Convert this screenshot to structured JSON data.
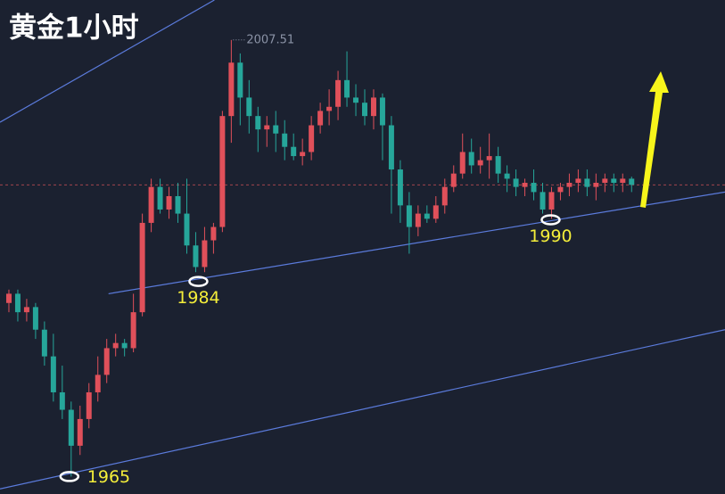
{
  "chart_data": {
    "type": "candlestick",
    "title": "黄金1小时",
    "up_color": "#e0505a",
    "down_color": "#26a69a",
    "xlim": [
      -1,
      80.5
    ],
    "ylim": [
      1963.3,
      2011.4
    ],
    "open": [
      1981.9,
      1982.8,
      1981.0,
      1981.5,
      1979.3,
      1976.7,
      1973.2,
      1971.5,
      1968.0,
      1970.6,
      1973.2,
      1974.9,
      1977.5,
      1978.0,
      1977.5,
      1981.0,
      1989.7,
      1993.2,
      1991.0,
      1992.3,
      1990.6,
      1987.5,
      1985.4,
      1988.0,
      1989.3,
      2000.1,
      2005.3,
      2001.9,
      2000.1,
      1998.8,
      1999.2,
      1998.4,
      1997.1,
      1996.2,
      1996.6,
      1999.2,
      2000.6,
      2001.0,
      2003.6,
      2001.9,
      2001.4,
      2000.1,
      2001.9,
      1999.2,
      1994.9,
      1991.4,
      1989.3,
      1990.6,
      1990.1,
      1991.4,
      1993.2,
      1994.5,
      1996.6,
      1995.3,
      1995.8,
      1996.2,
      1994.5,
      1994.0,
      1993.2,
      1993.6,
      1992.7,
      1991.0,
      1992.7,
      1993.2,
      1993.6,
      1994.0,
      1993.2,
      1993.6,
      1994.0,
      1993.6,
      1994.0
    ],
    "high": [
      1983.2,
      1983.2,
      1982.3,
      1981.9,
      1980.1,
      1978.9,
      1975.8,
      1972.3,
      1971.9,
      1974.1,
      1976.7,
      1978.4,
      1978.9,
      1978.4,
      1982.8,
      1990.6,
      1994.0,
      1994.0,
      1993.2,
      1993.6,
      1994.0,
      1988.8,
      1989.3,
      1989.7,
      2000.6,
      2007.51,
      2006.2,
      2003.6,
      2001.0,
      2000.1,
      2000.6,
      1999.7,
      1998.4,
      1997.9,
      2000.1,
      2001.4,
      2002.7,
      2004.5,
      2006.4,
      2003.2,
      2002.7,
      2002.7,
      2002.3,
      2000.1,
      1995.8,
      1992.7,
      1991.4,
      1991.4,
      1992.3,
      1994.0,
      1995.3,
      1998.4,
      1997.9,
      1997.1,
      1998.4,
      1997.1,
      1995.3,
      1994.9,
      1994.0,
      1994.9,
      1993.6,
      1993.2,
      1993.6,
      1994.5,
      1994.9,
      1994.9,
      1994.5,
      1994.5,
      1994.5,
      1994.5,
      1994.2
    ],
    "low": [
      1981.0,
      1980.1,
      1980.1,
      1978.4,
      1975.8,
      1972.3,
      1970.6,
      1965.0,
      1967.1,
      1969.7,
      1972.3,
      1974.1,
      1976.7,
      1976.7,
      1977.1,
      1980.6,
      1988.8,
      1990.6,
      1990.1,
      1989.7,
      1986.7,
      1984.9,
      1984.9,
      1986.7,
      1988.8,
      1997.5,
      1999.2,
      1998.4,
      1996.6,
      1997.1,
      1996.6,
      1995.8,
      1995.8,
      1995.3,
      1995.8,
      1998.4,
      1999.2,
      1999.7,
      2001.0,
      2000.1,
      1999.2,
      1998.8,
      1995.8,
      1990.6,
      1989.7,
      1986.7,
      1988.4,
      1989.7,
      1989.7,
      1990.6,
      1992.7,
      1994.0,
      1994.5,
      1994.5,
      1994.0,
      1993.6,
      1992.7,
      1992.3,
      1992.3,
      1991.9,
      1990.6,
      1990.1,
      1991.9,
      1992.3,
      1992.7,
      1992.3,
      1991.9,
      1992.7,
      1992.7,
      1992.7,
      1992.7
    ],
    "close": [
      1982.8,
      1981.0,
      1981.5,
      1979.3,
      1976.7,
      1973.2,
      1971.5,
      1968.0,
      1970.6,
      1973.2,
      1974.9,
      1977.5,
      1978.0,
      1977.5,
      1981.0,
      1989.7,
      1993.2,
      1991.0,
      1992.3,
      1990.6,
      1987.5,
      1985.4,
      1988.0,
      1989.3,
      2000.1,
      2005.3,
      2001.9,
      2000.1,
      1998.8,
      1999.2,
      1998.4,
      1997.1,
      1996.2,
      1996.6,
      1999.2,
      2000.6,
      2001.0,
      2003.6,
      2001.9,
      2001.4,
      2000.1,
      2001.9,
      1999.2,
      1994.9,
      1991.4,
      1989.3,
      1990.6,
      1990.1,
      1991.4,
      1993.2,
      1994.5,
      1996.6,
      1995.3,
      1995.8,
      1996.2,
      1994.5,
      1994.0,
      1993.2,
      1993.6,
      1992.7,
      1991.0,
      1992.7,
      1993.2,
      1993.6,
      1994.0,
      1993.2,
      1993.6,
      1994.0,
      1993.6,
      1994.0,
      1993.4
    ],
    "current_price": 1993.4,
    "current_price_color": "#a2444c",
    "trend_line_color": "#5b7bdc",
    "trend_lines": [
      {
        "x": [
          -1,
          23.1
        ],
        "y": [
          1999.5,
          2011.4
        ]
      },
      {
        "x": [
          11.2,
          80.5
        ],
        "y": [
          1982.8,
          1992.7
        ]
      },
      {
        "x": [
          -1,
          80.5
        ],
        "y": [
          1963.8,
          1979.3
        ]
      }
    ],
    "annotations": [
      {
        "index": 6.8,
        "value": 1965
      },
      {
        "index": 21.3,
        "value": 1984
      },
      {
        "index": 60.9,
        "value": 1990
      }
    ],
    "high_label": {
      "index": 25,
      "value": 2007.51
    }
  }
}
